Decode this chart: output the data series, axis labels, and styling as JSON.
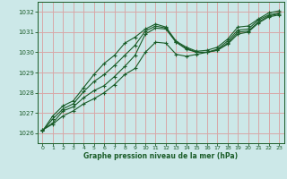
{
  "title": "Graphe pression niveau de la mer (hPa)",
  "bg_color": "#cce8e8",
  "grid_color": "#d8a8a8",
  "line_color": "#1a5c28",
  "ylim": [
    1025.5,
    1032.5
  ],
  "xlim": [
    -0.5,
    23.5
  ],
  "yticks": [
    1026,
    1027,
    1028,
    1029,
    1030,
    1031,
    1032
  ],
  "xticks": [
    0,
    1,
    2,
    3,
    4,
    5,
    6,
    7,
    8,
    9,
    10,
    11,
    12,
    13,
    14,
    15,
    16,
    17,
    18,
    19,
    20,
    21,
    22,
    23
  ],
  "series": [
    [
      1026.15,
      1026.45,
      1026.85,
      1027.1,
      1027.45,
      1027.7,
      1028.0,
      1028.4,
      1028.9,
      1029.2,
      1030.0,
      1030.5,
      1030.45,
      1029.9,
      1029.8,
      1029.9,
      1030.0,
      1030.1,
      1030.4,
      1030.9,
      1031.0,
      1031.45,
      1031.75,
      1031.85
    ],
    [
      1026.15,
      1026.5,
      1027.1,
      1027.3,
      1027.75,
      1028.1,
      1028.35,
      1028.8,
      1029.3,
      1029.85,
      1030.9,
      1031.2,
      1031.15,
      1030.5,
      1030.15,
      1030.0,
      1030.0,
      1030.1,
      1030.45,
      1031.0,
      1031.05,
      1031.5,
      1031.8,
      1031.9
    ],
    [
      1026.1,
      1026.7,
      1027.2,
      1027.45,
      1028.05,
      1028.55,
      1028.9,
      1029.35,
      1029.85,
      1030.35,
      1031.05,
      1031.3,
      1031.2,
      1030.5,
      1030.2,
      1030.0,
      1030.0,
      1030.15,
      1030.55,
      1031.1,
      1031.15,
      1031.6,
      1031.85,
      1031.95
    ],
    [
      1026.1,
      1026.85,
      1027.35,
      1027.6,
      1028.25,
      1028.9,
      1029.45,
      1029.85,
      1030.45,
      1030.75,
      1031.15,
      1031.4,
      1031.25,
      1030.55,
      1030.25,
      1030.05,
      1030.1,
      1030.25,
      1030.65,
      1031.25,
      1031.3,
      1031.65,
      1031.95,
      1032.05
    ]
  ]
}
